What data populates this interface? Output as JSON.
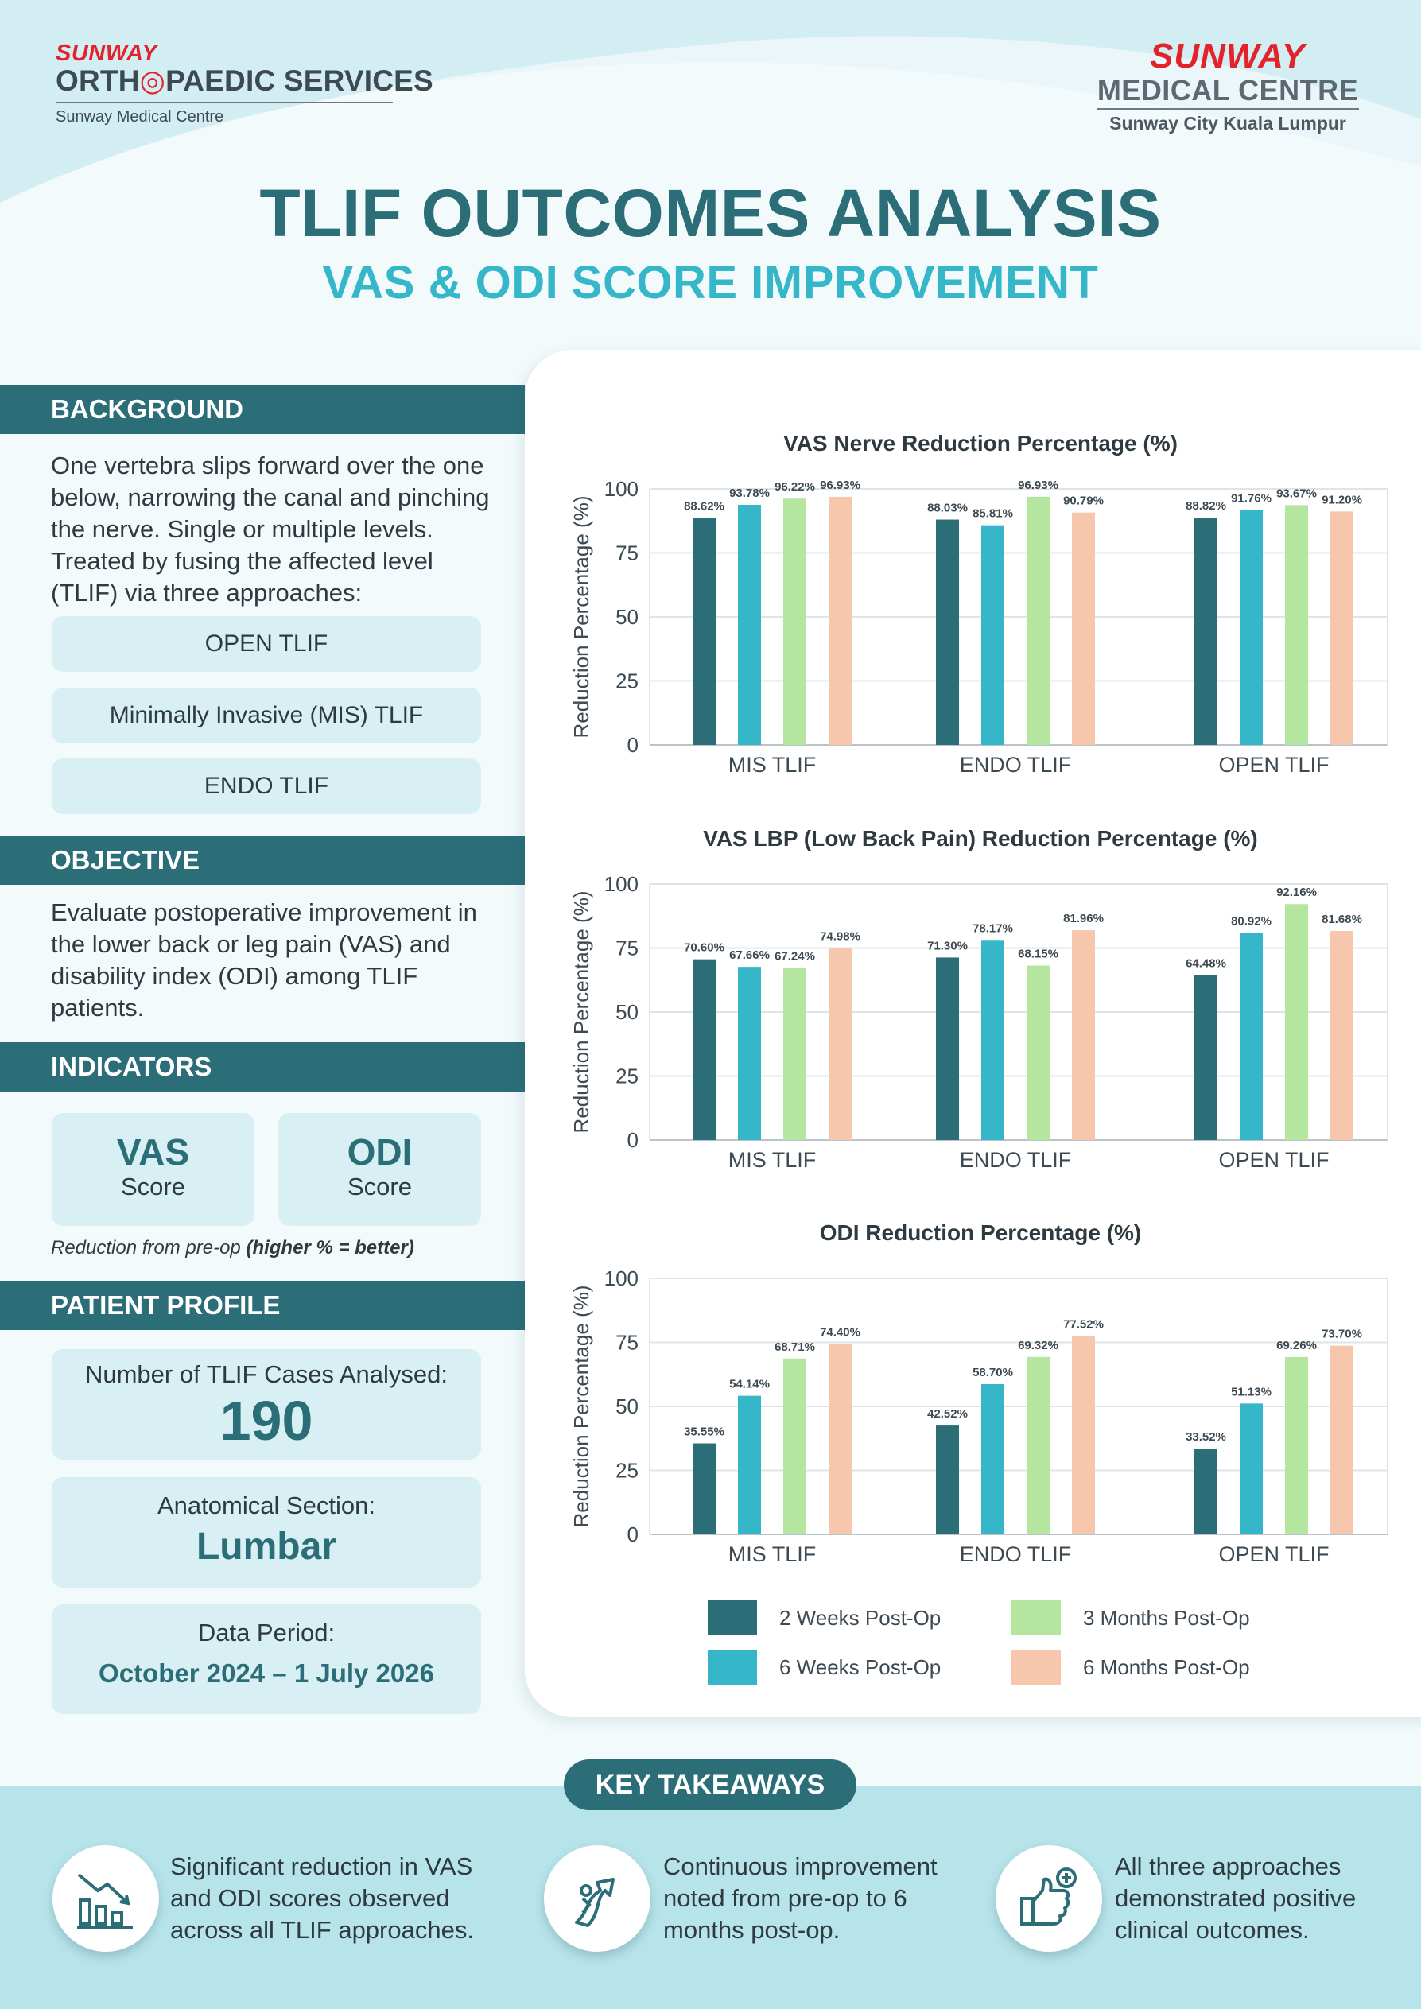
{
  "header": {
    "left_logo": {
      "brand": "SUNWAY",
      "service_pre": "ORTH",
      "service_post": "PAEDIC SERVICES",
      "subtitle": "Sunway Medical Centre"
    },
    "right_logo": {
      "brand": "SUNWAY",
      "centre": "MEDICAL CENTRE",
      "subtitle": "Sunway City Kuala Lumpur"
    },
    "title": "TLIF OUTCOMES ANALYSIS",
    "subtitle": "VAS & ODI SCORE IMPROVEMENT"
  },
  "background": {
    "heading": "BACKGROUND",
    "text": "One vertebra slips forward over the one below, narrowing the canal and pinching the nerve. Single or multiple levels. Treated by fusing the affected level (TLIF) via three approaches:",
    "approaches": [
      "OPEN TLIF",
      "Minimally Invasive (MIS) TLIF",
      "ENDO TLIF"
    ]
  },
  "objective": {
    "heading": "OBJECTIVE",
    "text": "Evaluate postoperative improvement in the lower back or leg pain (VAS) and disability index (ODI) among TLIF patients."
  },
  "indicators": {
    "heading": "INDICATORS",
    "items": [
      {
        "name": "VAS",
        "label": "Score"
      },
      {
        "name": "ODI",
        "label": "Score"
      }
    ],
    "note_pre": "Reduction from pre-op ",
    "note_bold": "(higher % = better)"
  },
  "patient_profile": {
    "heading": "PATIENT PROFILE",
    "cases_label": "Number of TLIF Cases Analysed:",
    "cases_value": "190",
    "section_label": "Anatomical Section:",
    "section_value": "Lumbar",
    "period_label": "Data Period:",
    "period_value": "October 2024 – 1 July 2026"
  },
  "legend": [
    "2 Weeks Post-Op",
    "3 Months Post-Op",
    "6 Weeks Post-Op",
    "6 Months Post-Op"
  ],
  "colors": {
    "2 Weeks Post-Op": "#2b6e78",
    "6 Weeks Post-Op": "#35b6c9",
    "3 Months Post-Op": "#b5e6a0",
    "6 Months Post-Op": "#f7c7ad",
    "primary": "#2b6e78",
    "accent": "#35b6c9"
  },
  "chart_data": [
    {
      "type": "bar",
      "title": "VAS Nerve Reduction Percentage (%)",
      "ylabel": "Reduction Percentage (%)",
      "xlabel": "",
      "ylim": [
        0,
        100
      ],
      "yticks": [
        0,
        25,
        50,
        75,
        100
      ],
      "categories": [
        "MIS TLIF",
        "ENDO TLIF",
        "OPEN TLIF"
      ],
      "series": [
        {
          "name": "2 Weeks Post-Op",
          "values": [
            88.62,
            88.03,
            88.82
          ],
          "labels": [
            "88.62%",
            "88.03%",
            "88.82%"
          ]
        },
        {
          "name": "6 Weeks Post-Op",
          "values": [
            93.78,
            85.81,
            91.76
          ],
          "labels": [
            "93.78%",
            "85.81%",
            "91.76%"
          ]
        },
        {
          "name": "3 Months Post-Op",
          "values": [
            96.22,
            96.93,
            93.67
          ],
          "labels": [
            "96.22%",
            "96.93%",
            "93.67%"
          ]
        },
        {
          "name": "6 Months Post-Op",
          "values": [
            96.93,
            90.79,
            91.2
          ],
          "labels": [
            "96.93%",
            "90.79%",
            "91.20%"
          ]
        }
      ],
      "grid": true
    },
    {
      "type": "bar",
      "title": "VAS LBP (Low Back Pain) Reduction Percentage (%)",
      "ylabel": "Reduction Percentage (%)",
      "xlabel": "",
      "ylim": [
        0,
        100
      ],
      "yticks": [
        0,
        25,
        50,
        75,
        100
      ],
      "categories": [
        "MIS TLIF",
        "ENDO TLIF",
        "OPEN TLIF"
      ],
      "series": [
        {
          "name": "2 Weeks Post-Op",
          "values": [
            70.6,
            71.3,
            64.48
          ],
          "labels": [
            "70.60%",
            "71.30%",
            "64.48%"
          ]
        },
        {
          "name": "6 Weeks Post-Op",
          "values": [
            67.66,
            78.17,
            80.92
          ],
          "labels": [
            "67.66%",
            "78.17%",
            "80.92%"
          ]
        },
        {
          "name": "3 Months Post-Op",
          "values": [
            67.24,
            68.15,
            92.16
          ],
          "labels": [
            "67.24%",
            "68.15%",
            "92.16%"
          ]
        },
        {
          "name": "6 Months Post-Op",
          "values": [
            74.98,
            81.96,
            81.68
          ],
          "labels": [
            "74.98%",
            "81.96%",
            "81.68%"
          ]
        }
      ],
      "grid": true
    },
    {
      "type": "bar",
      "title": "ODI Reduction Percentage (%)",
      "ylabel": "Reduction Percentage (%)",
      "xlabel": "",
      "ylim": [
        0,
        100
      ],
      "yticks": [
        0,
        25,
        50,
        75,
        100
      ],
      "categories": [
        "MIS TLIF",
        "ENDO TLIF",
        "OPEN TLIF"
      ],
      "series": [
        {
          "name": "2 Weeks Post-Op",
          "values": [
            35.55,
            42.52,
            33.52
          ],
          "labels": [
            "35.55%",
            "42.52%",
            "33.52%"
          ]
        },
        {
          "name": "6 Weeks Post-Op",
          "values": [
            54.14,
            58.7,
            51.13
          ],
          "labels": [
            "54.14%",
            "58.70%",
            "51.13%"
          ]
        },
        {
          "name": "3 Months Post-Op",
          "values": [
            68.71,
            69.32,
            69.26
          ],
          "labels": [
            "68.71%",
            "69.32%",
            "69.26%"
          ]
        },
        {
          "name": "6 Months Post-Op",
          "values": [
            74.4,
            77.52,
            73.7
          ],
          "labels": [
            "74.40%",
            "77.52%",
            "73.70%"
          ]
        }
      ],
      "grid": true
    }
  ],
  "key_takeaways": {
    "heading": "KEY TAKEAWAYS",
    "items": [
      {
        "icon": "bar-chart-decline-icon",
        "text": "Significant reduction in VAS and ODI scores observed across all TLIF approaches."
      },
      {
        "icon": "upward-arrow-person-icon",
        "text": "Continuous improvement noted from pre-op to 6 months post-op."
      },
      {
        "icon": "thumbs-up-plus-icon",
        "text": "All three approaches demonstrated positive clinical outcomes."
      }
    ]
  }
}
